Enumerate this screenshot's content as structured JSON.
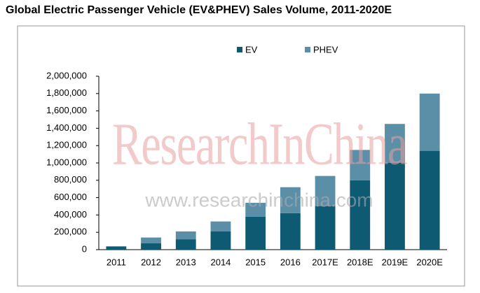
{
  "chart_data": {
    "type": "stacked_bar",
    "title": "Global Electric Passenger Vehicle (EV&PHEV) Sales Volume, 2011-2020E",
    "watermark": "ResearchInChina",
    "watermark_url": "www.researchinchina.com",
    "categories": [
      "2011",
      "2012",
      "2013",
      "2014",
      "2015",
      "2016",
      "2017E",
      "2018E",
      "2019E",
      "2020E"
    ],
    "series": [
      {
        "name": "EV",
        "color": "#0d5a72",
        "values": [
          35000,
          75000,
          120000,
          210000,
          380000,
          420000,
          500000,
          800000,
          1000000,
          1140000
        ]
      },
      {
        "name": "PHEV",
        "color": "#5b8fa8",
        "values": [
          5000,
          65000,
          90000,
          115000,
          160000,
          300000,
          350000,
          350000,
          450000,
          660000
        ]
      }
    ],
    "ylim": [
      0,
      2000000
    ],
    "yticks": [
      0,
      {
        "value": 200000,
        "label": "200,000"
      },
      {
        "value": 400000,
        "label": "400,000"
      },
      {
        "value": 600000,
        "label": "600,000"
      },
      {
        "value": 800000,
        "label": "800,000"
      },
      {
        "value": 1000000,
        "label": "1,000,000"
      },
      {
        "value": 1200000,
        "label": "1,200,000"
      },
      {
        "value": 1400000,
        "label": "1,400,000"
      },
      {
        "value": 1600000,
        "label": "1,600,000"
      },
      {
        "value": 1800000,
        "label": "1,800,000"
      },
      {
        "value": 2000000,
        "label": "2,000,000"
      }
    ],
    "legend": "top"
  }
}
